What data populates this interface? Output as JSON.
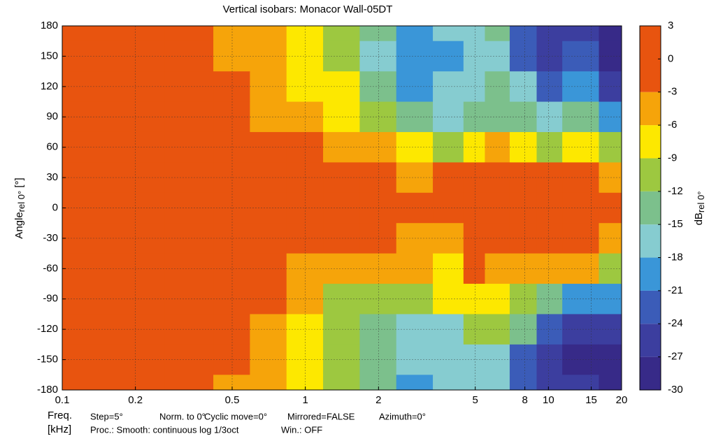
{
  "chart_data": {
    "type": "contour",
    "title": "Vertical isobars: Monacor  Wall-05DT",
    "y_label": "Angle",
    "y_label_sub": "rel 0°",
    "y_label_unit": " [°]",
    "colorbar_label": "dB",
    "colorbar_label_sub": "rel 0°",
    "x_label": "Freq.",
    "x_unit": "[kHz]",
    "footer_line1": [
      "Step=5°",
      "Norm. to 0°",
      "Cyclic move=0°",
      "Mirrored=FALSE",
      "Azimuth=0°"
    ],
    "footer_line2": [
      "Proc.: Smooth: continuous log 1/3oct",
      "Win.: OFF"
    ],
    "x_log": true,
    "xlim": [
      0.1,
      20
    ],
    "xticks": [
      0.1,
      0.2,
      0.5,
      1,
      2,
      5,
      8,
      10,
      15,
      20
    ],
    "ylim": [
      -180,
      180
    ],
    "yticks": [
      -180,
      -150,
      -120,
      -90,
      -60,
      -30,
      0,
      30,
      60,
      90,
      120,
      150,
      180
    ],
    "grid": true,
    "x": [
      0.1,
      0.2,
      0.35,
      0.5,
      0.7,
      1,
      1.4,
      2,
      2.8,
      4,
      5,
      6,
      8,
      10,
      13,
      20
    ],
    "y": [
      180,
      150,
      120,
      90,
      60,
      30,
      0,
      -30,
      -60,
      -90,
      -120,
      -150,
      -180
    ],
    "z": [
      [
        -1,
        -1,
        -2,
        -4,
        -6,
        -7,
        -10,
        -14,
        -20,
        -17,
        -16,
        -15,
        -22,
        -27,
        -26,
        -28
      ],
      [
        -1,
        -1,
        -2,
        -4,
        -6,
        -7,
        -11,
        -16,
        -20,
        -19,
        -17,
        -16,
        -22,
        -27,
        -22,
        -28
      ],
      [
        -1,
        -1,
        -1,
        -3,
        -6,
        -7,
        -9,
        -13,
        -20,
        -17,
        -16,
        -15,
        -18,
        -24,
        -20,
        -25
      ],
      [
        -1,
        -1,
        -1,
        -2,
        -4,
        -5,
        -7,
        -10,
        -14,
        -16,
        -13,
        -13,
        -14,
        -17,
        -15,
        -20
      ],
      [
        0,
        0,
        0,
        -1,
        -2,
        -3,
        -4,
        -6,
        -9,
        -12,
        -7,
        -6,
        -8,
        -10,
        -9,
        -12
      ],
      [
        0,
        0,
        0,
        0,
        -1,
        -1,
        -2,
        -3,
        -4,
        -2,
        -1,
        -1,
        -1,
        -2,
        -3,
        -5
      ],
      [
        0,
        0,
        0,
        0,
        0,
        0,
        0,
        0,
        0,
        0,
        0,
        0,
        0,
        0,
        0,
        0
      ],
      [
        0,
        0,
        0,
        0,
        0,
        -1,
        -2,
        -3,
        -6,
        -4,
        -1,
        -1,
        -1,
        -2,
        -3,
        -4
      ],
      [
        0,
        0,
        0,
        -1,
        -2,
        -4,
        -6,
        -6,
        -6,
        -7,
        -2,
        -6,
        -5,
        -5,
        -6,
        -10
      ],
      [
        -1,
        -1,
        -1,
        -2,
        -3,
        -6,
        -10,
        -12,
        -12,
        -9,
        -7,
        -8,
        -10,
        -15,
        -20,
        -20
      ],
      [
        -1,
        -1,
        -1,
        -2,
        -4,
        -7,
        -10,
        -13,
        -16,
        -16,
        -10,
        -10,
        -15,
        -22,
        -25,
        -27
      ],
      [
        -1,
        -1,
        -2,
        -3,
        -5,
        -7,
        -10,
        -14,
        -18,
        -18,
        -16,
        -18,
        -22,
        -26,
        -28,
        -29
      ],
      [
        -1,
        -1,
        -2,
        -4,
        -6,
        -7,
        -10,
        -14,
        -20,
        -18,
        -17,
        -17,
        -24,
        -27,
        -27,
        -29
      ]
    ],
    "levels": [
      -30,
      -27,
      -24,
      -21,
      -18,
      -15,
      -12,
      -9,
      -6,
      -3,
      3
    ],
    "colors": [
      "#372a88",
      "#3c3e9f",
      "#3b5cb8",
      "#3a96d8",
      "#86ccd0",
      "#7cc08c",
      "#9dc840",
      "#fde800",
      "#f6a40a",
      "#e8540f"
    ],
    "colorbar_ticks": [
      3,
      0,
      -3,
      -6,
      -9,
      -12,
      -15,
      -18,
      -21,
      -24,
      -27,
      -30
    ]
  }
}
